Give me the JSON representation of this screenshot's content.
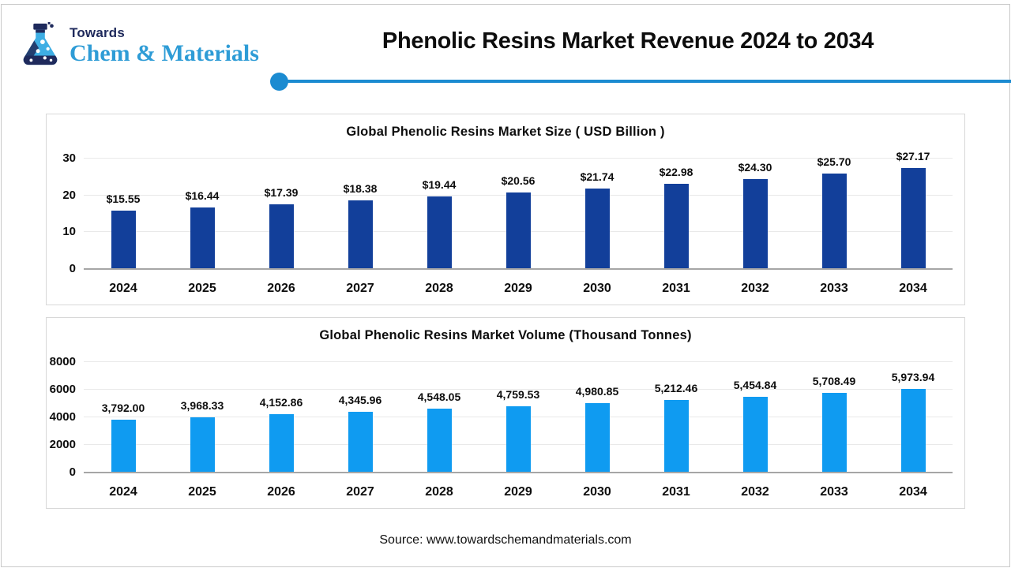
{
  "page": {
    "background": "#FFFFFF",
    "border_color": "#C9C9C9"
  },
  "logo": {
    "towards": "Towards",
    "brand": "Chem & Materials",
    "navy": "#1F2A5C",
    "blue": "#2E9CD6",
    "flask_liquid": "#3EAEE4"
  },
  "header": {
    "title": "Phenolic Resins Market Revenue 2024 to 2034",
    "divider_color": "#1B8BD1"
  },
  "footer": {
    "source": "Source: www.towardschemandmaterials.com"
  },
  "chart_data": [
    {
      "type": "bar",
      "title": "Global Phenolic Resins Market Size ( USD Billion )",
      "categories": [
        "2024",
        "2025",
        "2026",
        "2027",
        "2028",
        "2029",
        "2030",
        "2031",
        "2032",
        "2033",
        "2034"
      ],
      "values": [
        15.55,
        16.44,
        17.39,
        18.38,
        19.44,
        20.56,
        21.74,
        22.98,
        24.3,
        25.7,
        27.17
      ],
      "value_labels": [
        "$15.55",
        "$16.44",
        "$17.39",
        "$18.38",
        "$19.44",
        "$20.56",
        "$21.74",
        "$22.98",
        "$24.30",
        "$25.70",
        "$27.17"
      ],
      "xlabel": "",
      "ylabel": "",
      "yticks": [
        0,
        10,
        20,
        30
      ],
      "ytick_labels": [
        "0",
        "10",
        "20",
        "30"
      ],
      "ylim": [
        0,
        30
      ],
      "bar_color": "#123F9A",
      "grid": true,
      "legend_position": "none"
    },
    {
      "type": "bar",
      "title": "Global Phenolic Resins Market Volume (Thousand Tonnes)",
      "categories": [
        "2024",
        "2025",
        "2026",
        "2027",
        "2028",
        "2029",
        "2030",
        "2031",
        "2032",
        "2033",
        "2034"
      ],
      "values": [
        3792.0,
        3968.33,
        4152.86,
        4345.96,
        4548.05,
        4759.53,
        4980.85,
        5212.46,
        5454.84,
        5708.49,
        5973.94
      ],
      "value_labels": [
        "3,792.00",
        "3,968.33",
        "4,152.86",
        "4,345.96",
        "4,548.05",
        "4,759.53",
        "4,980.85",
        "5,212.46",
        "5,454.84",
        "5,708.49",
        "5,973.94"
      ],
      "xlabel": "",
      "ylabel": "",
      "yticks": [
        0,
        2000,
        4000,
        6000,
        8000
      ],
      "ytick_labels": [
        "0",
        "2000",
        "4000",
        "6000",
        "8000"
      ],
      "ylim": [
        0,
        8000
      ],
      "bar_color": "#0F9BF1",
      "grid": true,
      "legend_position": "none"
    }
  ]
}
